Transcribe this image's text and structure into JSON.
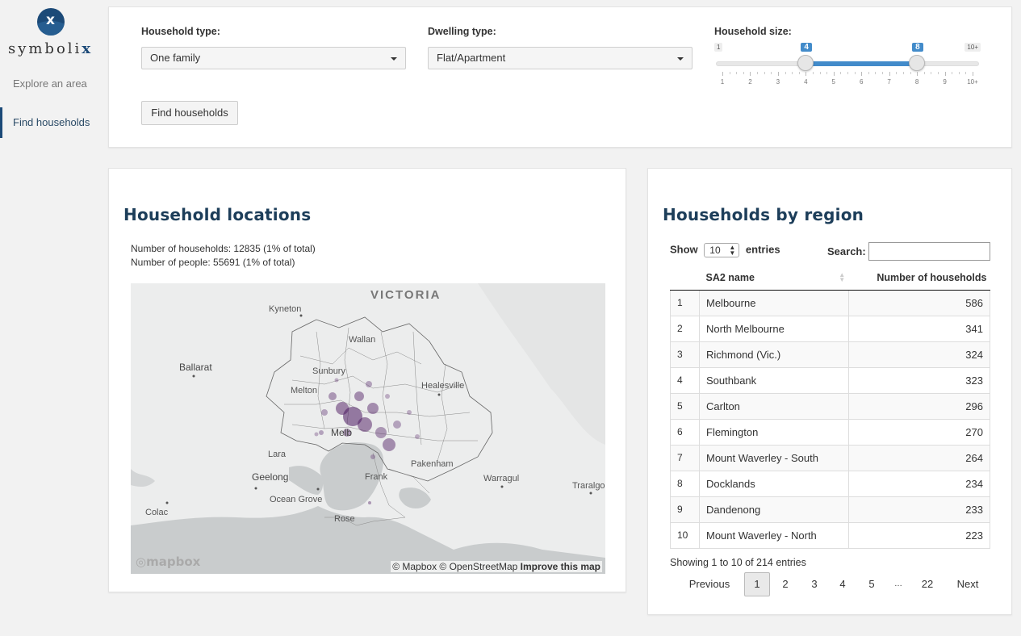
{
  "brand": {
    "name_prefix": "symboli",
    "name_suffix": "x",
    "mark": "x"
  },
  "sidebar": {
    "items": [
      {
        "label": "Explore an area",
        "active": false
      },
      {
        "label": "Find households",
        "active": true
      }
    ]
  },
  "filters": {
    "household_type_label": "Household type:",
    "household_type_value": "One family",
    "dwelling_type_label": "Dwelling type:",
    "dwelling_type_value": "Flat/Apartment",
    "household_size_label": "Household size:",
    "slider": {
      "min_label": "1",
      "max_label": "10+",
      "from": "4",
      "to": "8",
      "from_value": 4,
      "to_value": 8,
      "min": 1,
      "max": 10,
      "ticks": [
        "1",
        "2",
        "3",
        "4",
        "5",
        "6",
        "7",
        "8",
        "9",
        "10+"
      ]
    },
    "find_button": "Find households"
  },
  "map_panel": {
    "title": "Household locations",
    "households_stat": "Number of households: 12835 (1% of total)",
    "people_stat": "Number of people: 55691 (1% of total)",
    "places": {
      "victoria": "VICTORIA",
      "kyneton": "Kyneton",
      "ballarat": "Ballarat",
      "wallan": "Wallan",
      "sunbury": "Sunbury",
      "melton": "Melton",
      "healesville": "Healesville",
      "melbourne": "Melb",
      "lara": "Lara",
      "geelong": "Geelong",
      "pakenham": "Pakenham",
      "warragul": "Warragul",
      "traralgon": "Traralgo",
      "colac": "Colac",
      "ocean_grove": "Ocean Grove",
      "frankston": "Frank",
      "rosebud": "Rose"
    },
    "attribution": "© Mapbox © OpenStreetMap",
    "improve": "Improve this map",
    "mapbox_logo": "mapbox",
    "point_color": "#4b1760"
  },
  "table_panel": {
    "title": "Households by region",
    "show_label": "Show",
    "page_length": "10",
    "entries_label": "entries",
    "search_label": "Search:",
    "columns": [
      "",
      "SA2 name",
      "Number of households"
    ],
    "rows": [
      {
        "idx": "1",
        "name": "Melbourne",
        "count": "586"
      },
      {
        "idx": "2",
        "name": "North Melbourne",
        "count": "341"
      },
      {
        "idx": "3",
        "name": "Richmond (Vic.)",
        "count": "324"
      },
      {
        "idx": "4",
        "name": "Southbank",
        "count": "323"
      },
      {
        "idx": "5",
        "name": "Carlton",
        "count": "296"
      },
      {
        "idx": "6",
        "name": "Flemington",
        "count": "270"
      },
      {
        "idx": "7",
        "name": "Mount Waverley - South",
        "count": "264"
      },
      {
        "idx": "8",
        "name": "Docklands",
        "count": "234"
      },
      {
        "idx": "9",
        "name": "Dandenong",
        "count": "233"
      },
      {
        "idx": "10",
        "name": "Mount Waverley - North",
        "count": "223"
      }
    ],
    "info": "Showing 1 to 10 of 214 entries",
    "pagination": {
      "previous": "Previous",
      "next": "Next",
      "pages": [
        "1",
        "2",
        "3",
        "4",
        "5",
        "…",
        "22"
      ],
      "current": "1"
    }
  }
}
